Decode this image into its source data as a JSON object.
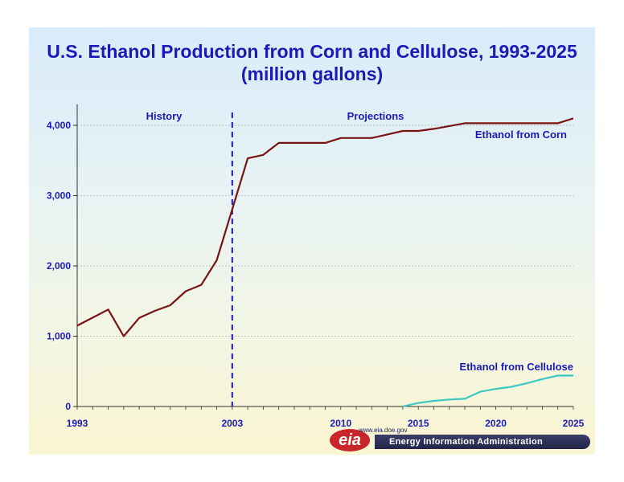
{
  "chart_data": {
    "type": "line",
    "title_line1": "U.S. Ethanol Production from Corn and Cellulose, 1993-2025",
    "title_line2": "(million gallons)",
    "xlim": [
      1993,
      2025
    ],
    "ylim": [
      0,
      4000
    ],
    "x_ticks": [
      1993,
      2003,
      2010,
      2015,
      2020,
      2025
    ],
    "y_ticks": [
      0,
      1000,
      2000,
      3000,
      4000
    ],
    "y_tick_labels": [
      "0",
      "1,000",
      "2,000",
      "3,000",
      "4,000"
    ],
    "divider_x": 2003,
    "region_labels": {
      "history": "History",
      "projections": "Projections"
    },
    "series": [
      {
        "name": "Ethanol from Corn",
        "color": "#7a1414",
        "x": [
          1993,
          1995,
          1996,
          1997,
          1998,
          1999,
          2000,
          2001,
          2002,
          2004,
          2005,
          2006,
          2007,
          2008,
          2009,
          2010,
          2011,
          2012,
          2013,
          2014,
          2015,
          2016,
          2017,
          2018,
          2019,
          2020,
          2021,
          2022,
          2023,
          2024,
          2025
        ],
        "y": [
          1150,
          1380,
          1000,
          1260,
          1360,
          1440,
          1640,
          1730,
          2080,
          3530,
          3580,
          3750,
          3750,
          3750,
          3750,
          3820,
          3820,
          3820,
          3870,
          3920,
          3920,
          3950,
          3990,
          4030,
          4030,
          4030,
          4030,
          4030,
          4030,
          4030,
          4100
        ]
      },
      {
        "name": "Ethanol from Cellulose",
        "color": "#3ec8c0",
        "x": [
          2014,
          2015,
          2016,
          2017,
          2018,
          2019,
          2020,
          2021,
          2022,
          2023,
          2024,
          2025
        ],
        "y": [
          0,
          50,
          80,
          100,
          110,
          210,
          250,
          280,
          330,
          390,
          440,
          440
        ]
      }
    ]
  },
  "footer": {
    "logo_text": "eia",
    "url": "www.eia.doe.gov",
    "agency": "Energy Information Administration"
  }
}
